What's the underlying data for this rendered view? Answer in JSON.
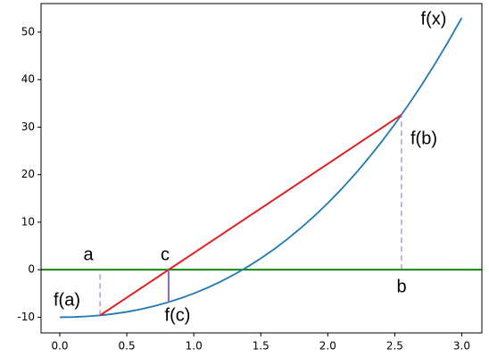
{
  "chart_data": {
    "type": "line",
    "xlim": [
      -0.14,
      3.15
    ],
    "ylim": [
      -13.3,
      56
    ],
    "xticks": [
      {
        "value": 0,
        "label": "0.0"
      },
      0.5,
      {
        "value": 1,
        "label": "1.0"
      },
      1.5,
      {
        "value": 2,
        "label": "2.0"
      },
      2.5,
      {
        "value": 3,
        "label": "3.0"
      }
    ],
    "yticks": [
      -10,
      0,
      10,
      20,
      30,
      40,
      50
    ],
    "hline": 0,
    "hline_color": "#008000",
    "series": [
      {
        "color": "#1f77b4",
        "dashed": false,
        "x": [
          0,
          0.1,
          0.2,
          0.3,
          0.4,
          0.5,
          0.6,
          0.7,
          0.8,
          0.9,
          1.0,
          1.1,
          1.2,
          1.3,
          1.4,
          1.5,
          1.6,
          1.7,
          1.8,
          1.9,
          2.0,
          2.1,
          2.2,
          2.3,
          2.4,
          2.5,
          2.6,
          2.7,
          2.8,
          2.9,
          3.0
        ],
        "values": [
          -10,
          -9.959,
          -9.832,
          -9.613,
          -9.296,
          -8.875,
          -8.344,
          -7.697,
          -6.928,
          -6.031,
          -5,
          -3.829,
          -2.512,
          -1.043,
          0.584,
          2.375,
          4.336,
          6.473,
          8.792,
          11.299,
          14,
          16.901,
          20.008,
          23.327,
          26.864,
          30.625,
          34.616,
          38.843,
          43.312,
          48.029,
          53
        ]
      },
      {
        "color": "#e02020",
        "dashed": false,
        "x": [
          0.3,
          2.55
        ],
        "values": [
          -9.613,
          32.6
        ]
      },
      {
        "color": "#9467bd",
        "dashed": true,
        "x": [
          0.3,
          0.3
        ],
        "values": [
          -9.613,
          0
        ]
      },
      {
        "color": "#9467bd",
        "dashed": true,
        "x": [
          2.55,
          2.55
        ],
        "values": [
          0,
          32.6
        ]
      },
      {
        "color": "#9467bd",
        "dashed": false,
        "x": [
          0.812,
          0.812
        ],
        "values": [
          0,
          -6.83
        ]
      }
    ],
    "annotations": [
      "f(x)",
      "f(b)",
      "a",
      "c",
      "b",
      "f(a)",
      "f(c)"
    ]
  }
}
